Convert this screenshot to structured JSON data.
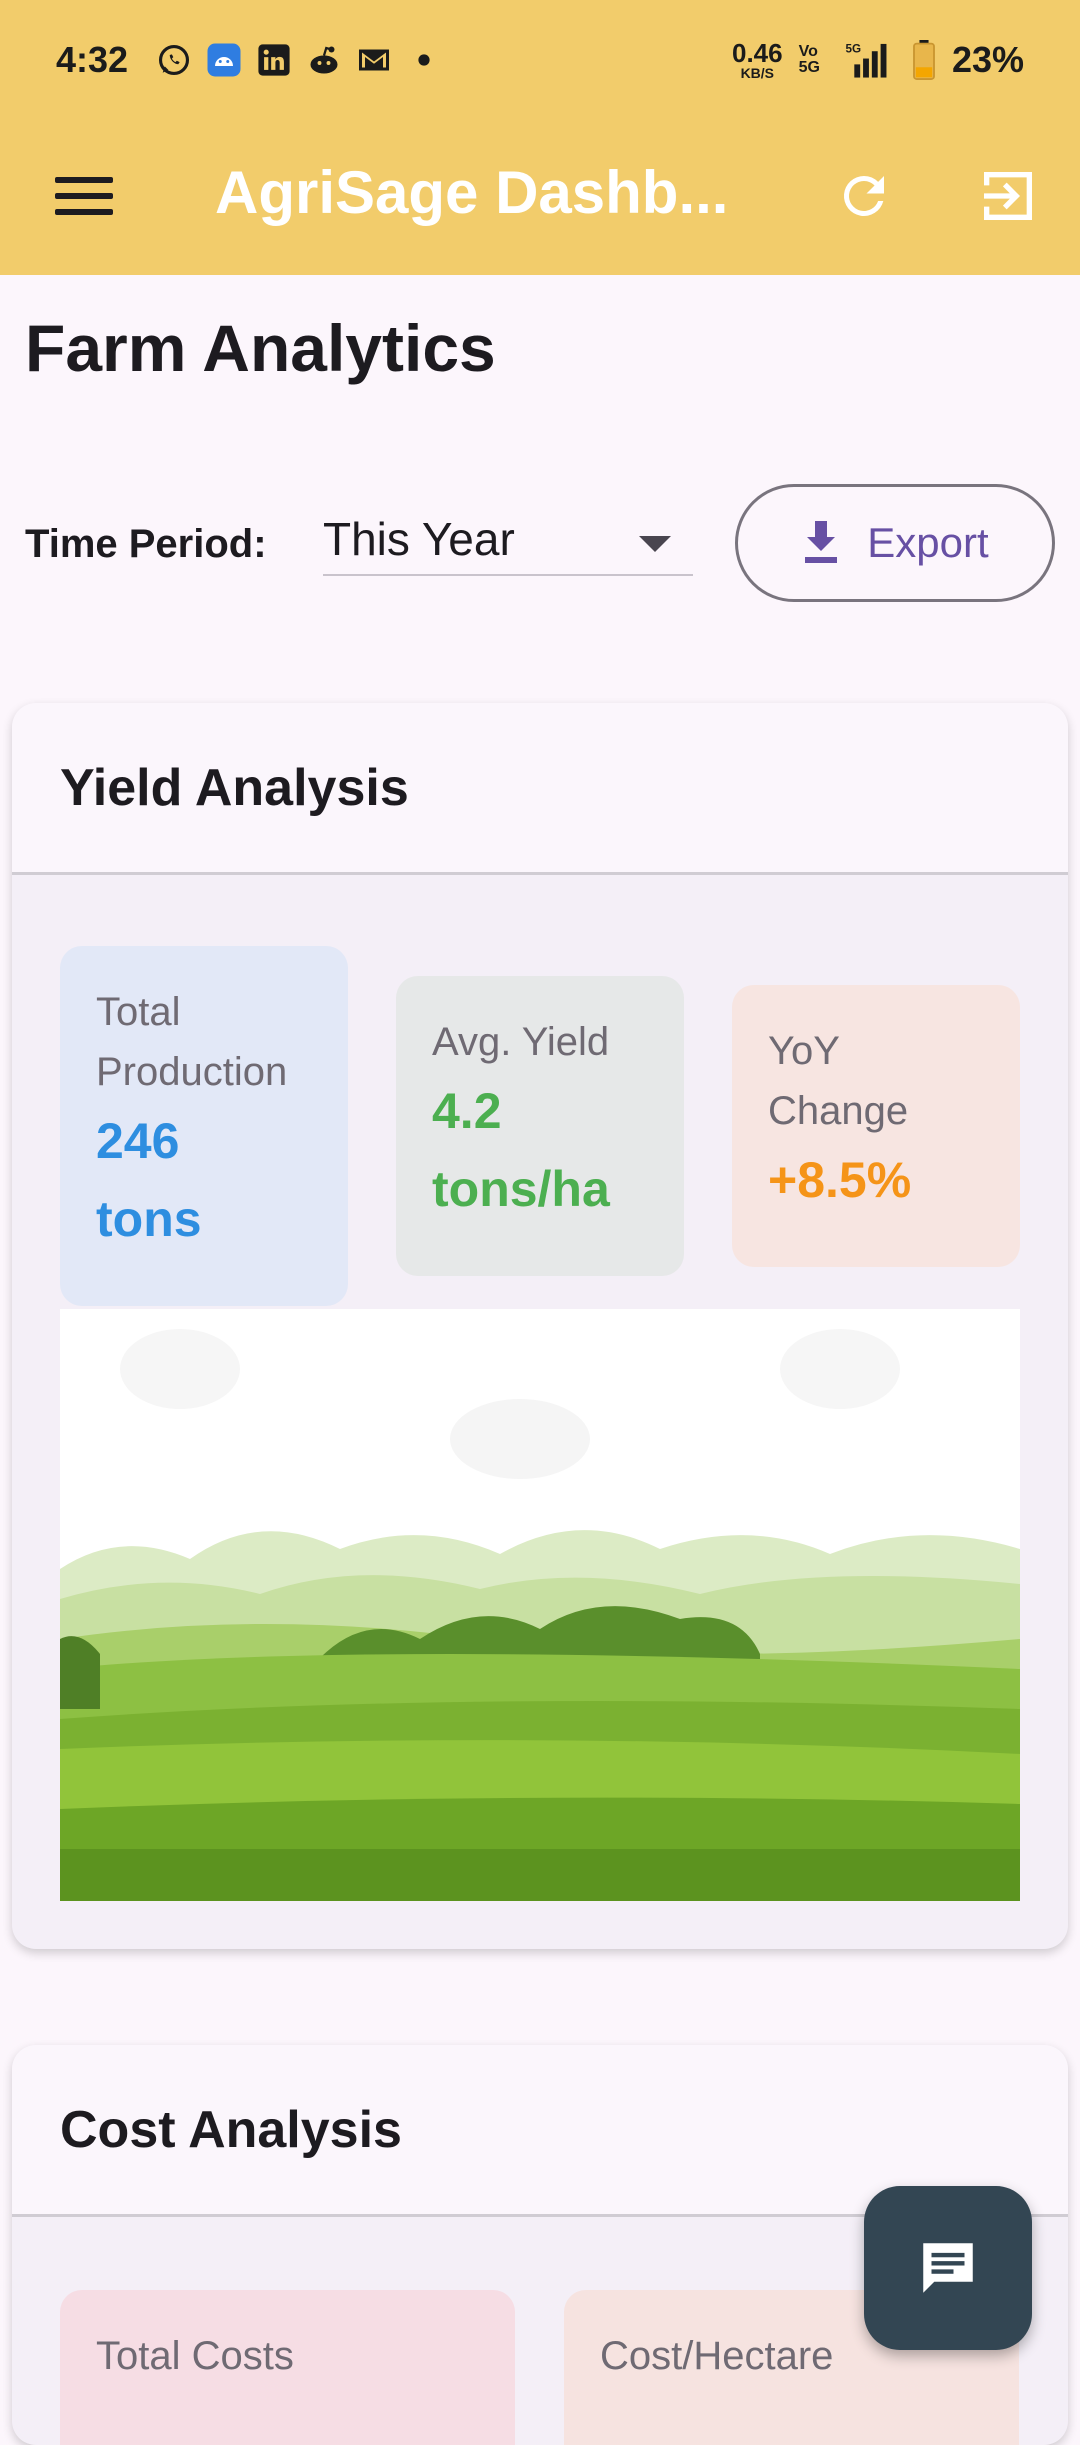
{
  "status_bar": {
    "time": "4:32",
    "net_speed_value": "0.46",
    "net_speed_unit": "KB/S",
    "volte_top": "Vo",
    "volte_bottom": "5G",
    "network_type": "5G",
    "battery": "23%"
  },
  "app_bar": {
    "title": "AgriSage Dashb..."
  },
  "page": {
    "title": "Farm Analytics"
  },
  "filters": {
    "time_period_label": "Time Period:",
    "time_period_value": "This Year",
    "export_label": "Export"
  },
  "yield_card": {
    "title": "Yield Analysis",
    "stats": [
      {
        "label": "Total Production",
        "value": "246 tons",
        "color": "#2e8ee0",
        "bg": "#e2e8f7"
      },
      {
        "label": "Avg. Yield",
        "value": "4.2 tons/ha",
        "color": "#4caf50",
        "bg": "#e6e8e8"
      },
      {
        "label": "YoY Change",
        "value": "+8.5%",
        "color": "#f59418",
        "bg": "#f7e5e1"
      }
    ]
  },
  "cost_card": {
    "title": "Cost Analysis",
    "stats": [
      {
        "label": "Total Costs",
        "bg": "#f6dde4"
      },
      {
        "label": "Cost/Hectare",
        "bg": "#f6e3e0"
      }
    ]
  },
  "colors": {
    "app_bar": "#f2cc6b",
    "accent": "#6750a4",
    "fab": "#334653"
  }
}
